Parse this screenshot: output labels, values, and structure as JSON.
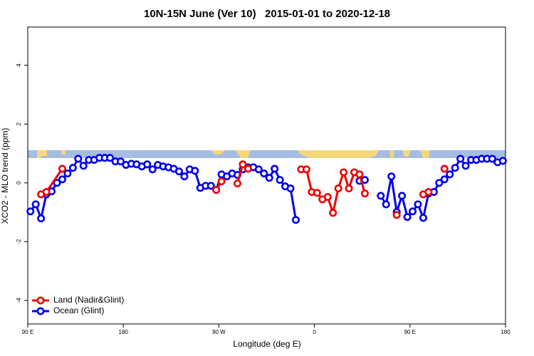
{
  "chart_data": {
    "type": "line",
    "title": "10N-15N June (Ver 10)   2015-01-01 to 2020-12-18",
    "xlabel": "Longitude (deg E)",
    "ylabel": "XCO2 - MLO trend (ppm)",
    "xlim": [
      90,
      540
    ],
    "ylim": [
      -4.8,
      5.3
    ],
    "xticks": [
      {
        "value": 90,
        "label": "90 E"
      },
      {
        "value": 180,
        "label": "180"
      },
      {
        "value": 270,
        "label": "90 W"
      },
      {
        "value": 360,
        "label": "0"
      },
      {
        "value": 450,
        "label": "90 E"
      },
      {
        "value": 540,
        "label": "180"
      }
    ],
    "yticks": [
      -4,
      -2,
      0,
      2,
      4
    ],
    "legend": "bottomleft",
    "series": [
      {
        "name": "Land (Nadir&Glint)",
        "color": "#ee0000",
        "x": [
          102.5,
          107.5,
          122.5,
          137.5,
          267.5,
          272.5,
          277.5,
          287.5,
          292.5,
          297.5,
          302.5,
          347.5,
          352.5,
          357.5,
          362.5,
          367.5,
          372.5,
          377.5,
          382.5,
          387.5,
          392.5,
          397.5,
          402.5,
          407.5,
          412.5,
          437.5,
          442.5,
          462.5,
          467.5,
          472.5,
          482.5
        ],
        "values": [
          -0.39,
          -0.31,
          0.48,
          null,
          -0.24,
          0.05,
          null,
          -0.02,
          0.63,
          0.48,
          null,
          0.46,
          0.46,
          -0.31,
          -0.34,
          -0.56,
          -0.48,
          -1.02,
          -0.19,
          0.36,
          -0.19,
          0.36,
          0.29,
          -0.36,
          null,
          -1.09,
          null,
          -0.39,
          -0.31,
          null,
          0.48
        ]
      },
      {
        "name": "Ocean (Glint)",
        "color": "#0000ee",
        "x": [
          92.5,
          97.5,
          102.5,
          107.5,
          112.5,
          117.5,
          122.5,
          127.5,
          132.5,
          137.5,
          142.5,
          147.5,
          152.5,
          157.5,
          162.5,
          167.5,
          172.5,
          177.5,
          182.5,
          187.5,
          192.5,
          197.5,
          202.5,
          207.5,
          212.5,
          217.5,
          222.5,
          227.5,
          232.5,
          237.5,
          242.5,
          247.5,
          252.5,
          257.5,
          262.5,
          267.5,
          272.5,
          277.5,
          282.5,
          287.5,
          292.5,
          297.5,
          302.5,
          307.5,
          312.5,
          317.5,
          322.5,
          327.5,
          332.5,
          337.5,
          342.5,
          347.5,
          402.5,
          407.5,
          412.5,
          422.5,
          427.5,
          432.5,
          437.5,
          442.5,
          447.5,
          452.5,
          457.5,
          462.5,
          467.5,
          472.5,
          477.5,
          482.5,
          487.5,
          492.5,
          497.5,
          502.5,
          507.5,
          512.5,
          517.5,
          522.5,
          527.5,
          532.5,
          537.5
        ],
        "values": [
          -0.97,
          -0.73,
          -1.21,
          -0.39,
          -0.29,
          0.0,
          0.12,
          0.32,
          0.51,
          0.82,
          0.58,
          0.78,
          0.78,
          0.85,
          0.85,
          0.85,
          0.73,
          0.73,
          0.61,
          0.65,
          0.63,
          0.56,
          0.63,
          0.46,
          0.61,
          0.56,
          0.53,
          0.48,
          0.39,
          0.22,
          0.46,
          0.41,
          -0.17,
          -0.1,
          -0.1,
          -0.24,
          0.29,
          0.22,
          0.32,
          0.27,
          0.46,
          0.53,
          0.53,
          0.46,
          0.32,
          0.17,
          0.48,
          0.1,
          -0.12,
          -0.19,
          -1.26,
          null,
          0.07,
          0.1,
          null,
          -0.44,
          -0.73,
          0.22,
          -0.99,
          -0.44,
          -1.16,
          -0.97,
          -0.73,
          -1.19,
          -0.36,
          -0.31,
          0.0,
          0.12,
          0.29,
          0.51,
          0.82,
          0.58,
          0.78,
          0.78,
          0.82,
          0.82,
          0.82,
          0.7,
          0.75
        ]
      }
    ]
  }
}
